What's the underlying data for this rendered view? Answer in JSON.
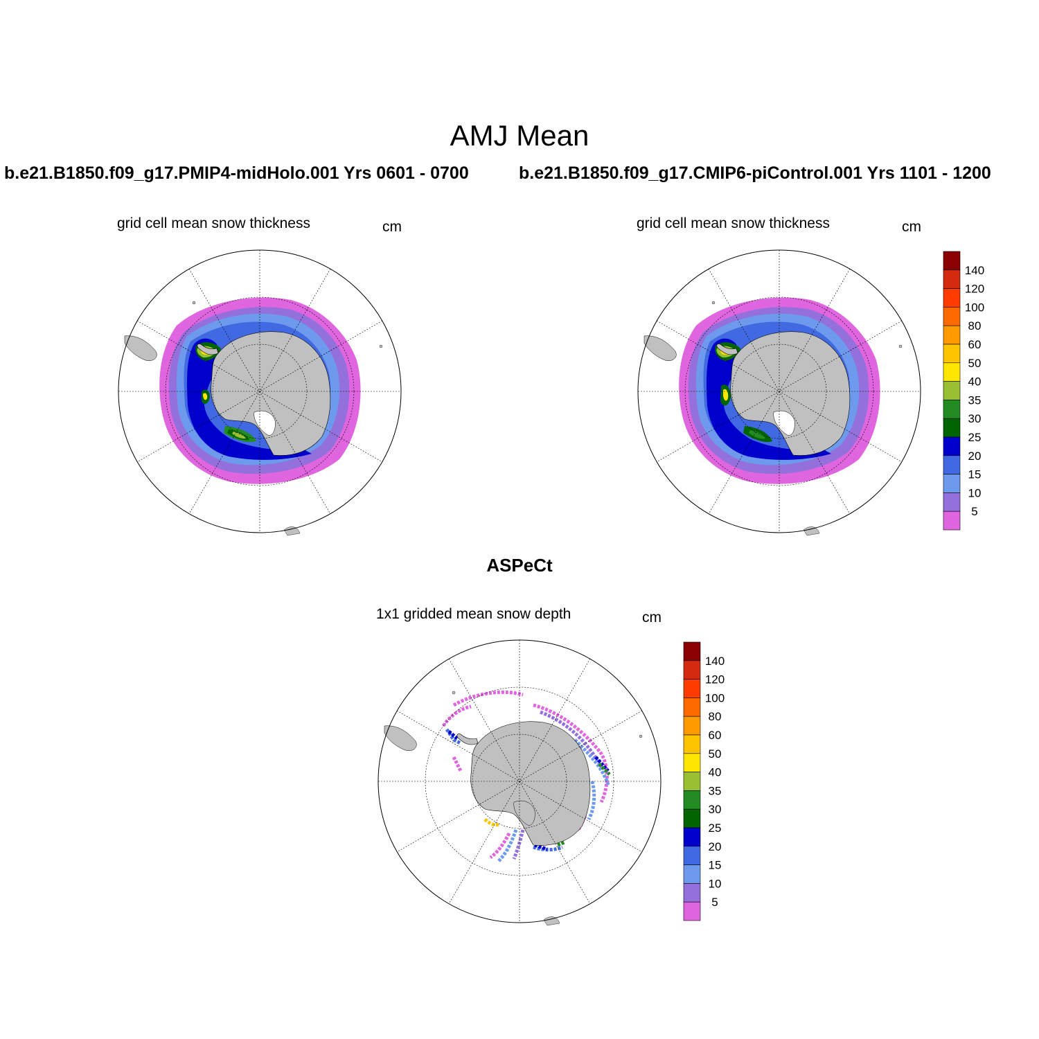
{
  "title": "AMJ Mean",
  "panels": [
    {
      "case_title": "b.e21.B1850.f09_g17.PMIP4-midHolo.001  Yrs 0601 - 0700",
      "var_label": "grid cell mean snow thickness",
      "units": "cm"
    },
    {
      "case_title": "b.e21.B1850.f09_g17.CMIP6-piControl.001  Yrs 1101 - 1200",
      "var_label": "grid cell mean snow thickness",
      "units": "cm"
    },
    {
      "case_title": "ASPeCt",
      "var_label": "1x1 gridded mean snow depth",
      "units": "cm"
    }
  ],
  "colorbar": {
    "labels": [
      "140",
      "120",
      "100",
      "80",
      "60",
      "50",
      "40",
      "35",
      "30",
      "25",
      "20",
      "15",
      "10",
      "5"
    ],
    "colors": [
      "#8b0000",
      "#d42a10",
      "#ff3b00",
      "#ff6a00",
      "#ff9900",
      "#ffc400",
      "#ffe600",
      "#99bf33",
      "#228b22",
      "#006400",
      "#0000cd",
      "#4169e1",
      "#6e9aee",
      "#9370db",
      "#e066e0"
    ]
  },
  "map": {
    "land_color": "#c0c0c0",
    "ocean_color": "#ffffff"
  }
}
